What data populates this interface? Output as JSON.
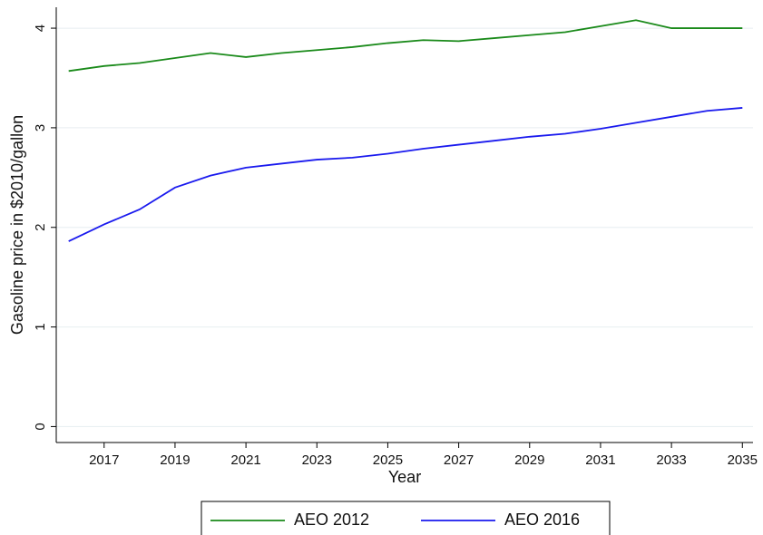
{
  "chart_data": {
    "type": "line",
    "xlabel": "Year",
    "ylabel": "Gasoline price in $2010/gallon",
    "x": [
      2016,
      2017,
      2018,
      2019,
      2020,
      2021,
      2022,
      2023,
      2024,
      2025,
      2026,
      2027,
      2028,
      2029,
      2030,
      2031,
      2032,
      2033,
      2034,
      2035
    ],
    "series": [
      {
        "name": "AEO 2012",
        "color": "#1a8a1a",
        "values": [
          3.57,
          3.62,
          3.65,
          3.7,
          3.75,
          3.71,
          3.75,
          3.78,
          3.81,
          3.85,
          3.88,
          3.87,
          3.9,
          3.93,
          3.96,
          4.02,
          4.08,
          4.0,
          4.0,
          4.0
        ]
      },
      {
        "name": "AEO 2016",
        "color": "#1a1aee",
        "values": [
          1.86,
          2.03,
          2.18,
          2.4,
          2.52,
          2.6,
          2.64,
          2.68,
          2.7,
          2.74,
          2.79,
          2.83,
          2.87,
          2.91,
          2.94,
          2.99,
          3.05,
          3.11,
          3.17,
          3.2
        ]
      }
    ],
    "xlim": [
      2015.65,
      2035.3
    ],
    "xticks": [
      2017,
      2019,
      2021,
      2023,
      2025,
      2027,
      2029,
      2031,
      2033,
      2035
    ],
    "ylim": [
      -0.16,
      4.21
    ],
    "yticks": [
      0,
      1,
      2,
      3,
      4
    ],
    "grid": true,
    "legend": "bottom"
  }
}
